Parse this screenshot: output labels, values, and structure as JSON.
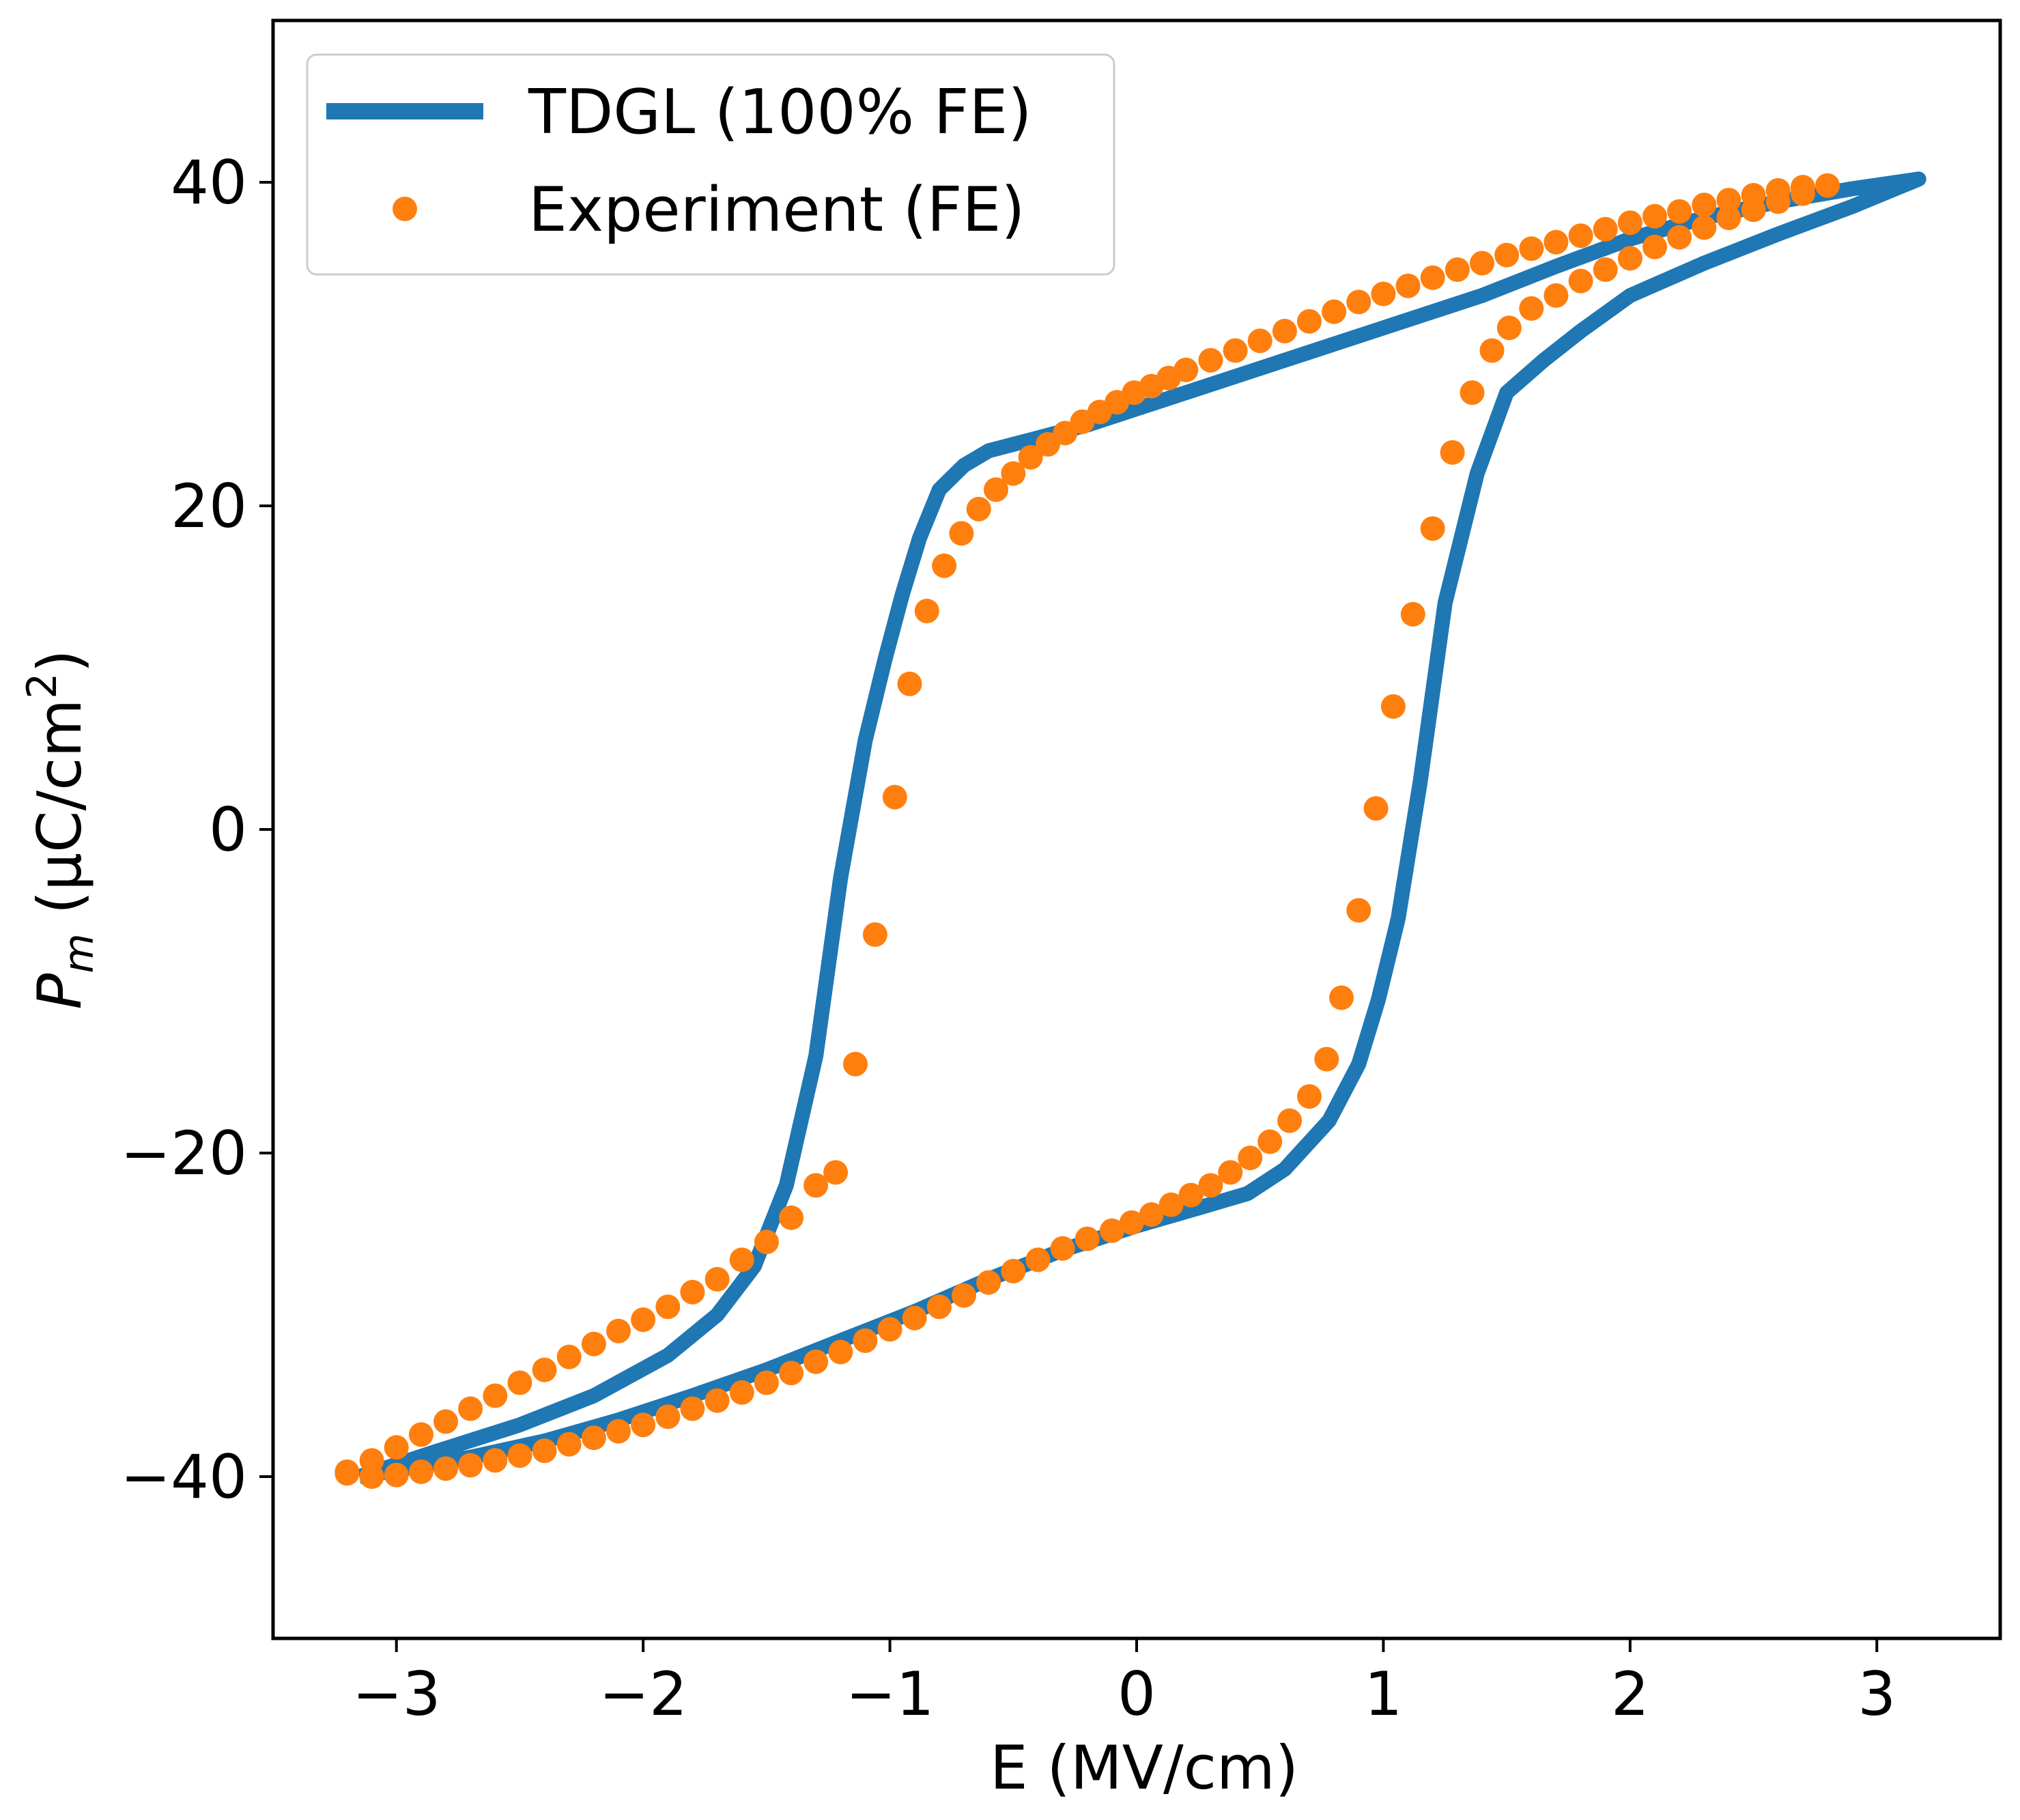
{
  "chart_data": {
    "type": "line",
    "title": "",
    "xlabel": "E (MV/cm)",
    "ylabel_main": "P",
    "ylabel_sub": "m",
    "ylabel_rest": " (μC/cm",
    "ylabel_sup": "2",
    "ylabel_close": ")",
    "xlim": [
      -3.5,
      3.5
    ],
    "ylim": [
      -50,
      50
    ],
    "xticks": [
      -3,
      -2,
      -1,
      0,
      1,
      2,
      3
    ],
    "xtick_labels": [
      "−3",
      "−2",
      "−1",
      "0",
      "1",
      "2",
      "3"
    ],
    "yticks": [
      -40,
      -20,
      0,
      20,
      40
    ],
    "ytick_labels": [
      "−40",
      "−20",
      "0",
      "20",
      "40"
    ],
    "legend_position": "top-left",
    "series": [
      {
        "name": "TDGL (100% FE)",
        "style": "line",
        "color": "#1f77b4",
        "x": [
          -3.15,
          -2.85,
          -2.5,
          -2.2,
          -1.9,
          -1.7,
          -1.55,
          -1.42,
          -1.3,
          -1.2,
          -1.1,
          -1.02,
          -0.95,
          -0.88,
          -0.8,
          -0.7,
          -0.6,
          -0.4,
          -0.2,
          0.0,
          0.3,
          0.6,
          1.0,
          1.4,
          1.7,
          2.0,
          2.3,
          2.6,
          2.9,
          3.17,
          2.9,
          2.6,
          2.3,
          2.0,
          1.8,
          1.65,
          1.5,
          1.38,
          1.25,
          1.15,
          1.06,
          0.98,
          0.9,
          0.78,
          0.6,
          0.45,
          0.25,
          0.0,
          -0.3,
          -0.6,
          -0.9,
          -1.2,
          -1.5,
          -1.8,
          -2.1,
          -2.4,
          -2.7,
          -3.0,
          -3.15
        ],
        "y": [
          -40.0,
          -38.5,
          -36.8,
          -35.0,
          -32.5,
          -30.0,
          -27.0,
          -22.0,
          -14.0,
          -3.0,
          5.5,
          10.5,
          14.5,
          18.0,
          21.0,
          22.5,
          23.4,
          24.2,
          25.0,
          26.0,
          27.5,
          29.0,
          31.0,
          33.0,
          34.8,
          36.5,
          37.8,
          38.8,
          39.6,
          40.2,
          38.5,
          36.8,
          35.0,
          33.0,
          30.8,
          29.0,
          27.0,
          22.0,
          14.0,
          3.0,
          -5.5,
          -10.5,
          -14.5,
          -18.0,
          -21.0,
          -22.5,
          -23.4,
          -24.5,
          -26.0,
          -27.8,
          -29.8,
          -31.6,
          -33.4,
          -35.0,
          -36.5,
          -37.8,
          -38.8,
          -39.6,
          -40.0
        ]
      },
      {
        "name": "Experiment (FE)",
        "style": "scatter",
        "color": "#ff7f0e",
        "x": [
          -3.2,
          -3.1,
          -3.0,
          -2.9,
          -2.8,
          -2.7,
          -2.6,
          -2.5,
          -2.4,
          -2.3,
          -2.2,
          -2.1,
          -2.0,
          -1.9,
          -1.8,
          -1.7,
          -1.6,
          -1.5,
          -1.4,
          -1.3,
          -1.22,
          -1.14,
          -1.06,
          -0.98,
          -0.92,
          -0.85,
          -0.78,
          -0.71,
          -0.64,
          -0.57,
          -0.5,
          -0.43,
          -0.36,
          -0.29,
          -0.22,
          -0.15,
          -0.08,
          -0.01,
          0.06,
          0.13,
          0.2,
          0.3,
          0.4,
          0.5,
          0.6,
          0.7,
          0.8,
          0.9,
          1.0,
          1.1,
          1.2,
          1.3,
          1.4,
          1.5,
          1.6,
          1.7,
          1.8,
          1.9,
          2.0,
          2.1,
          2.2,
          2.3,
          2.4,
          2.5,
          2.6,
          2.7,
          2.8,
          2.7,
          2.6,
          2.5,
          2.4,
          2.3,
          2.2,
          2.1,
          2.0,
          1.9,
          1.8,
          1.7,
          1.6,
          1.51,
          1.44,
          1.36,
          1.28,
          1.2,
          1.12,
          1.04,
          0.97,
          0.9,
          0.83,
          0.77,
          0.7,
          0.62,
          0.54,
          0.46,
          0.38,
          0.3,
          0.22,
          0.14,
          0.06,
          -0.02,
          -0.1,
          -0.2,
          -0.3,
          -0.4,
          -0.5,
          -0.6,
          -0.7,
          -0.8,
          -0.9,
          -1.0,
          -1.1,
          -1.2,
          -1.3,
          -1.4,
          -1.5,
          -1.6,
          -1.7,
          -1.8,
          -1.9,
          -2.0,
          -2.1,
          -2.2,
          -2.3,
          -2.4,
          -2.5,
          -2.6,
          -2.7,
          -2.8,
          -2.9,
          -3.0,
          -3.1,
          -3.2
        ],
        "y": [
          -39.7,
          -39.0,
          -38.2,
          -37.4,
          -36.6,
          -35.8,
          -35.0,
          -34.2,
          -33.4,
          -32.6,
          -31.8,
          -31.0,
          -30.3,
          -29.5,
          -28.6,
          -27.8,
          -26.6,
          -25.5,
          -24.0,
          -22.0,
          -21.2,
          -14.5,
          -6.5,
          2.0,
          9.0,
          13.5,
          16.3,
          18.3,
          19.8,
          21.0,
          22.0,
          23.0,
          23.8,
          24.5,
          25.2,
          25.8,
          26.4,
          27.0,
          27.4,
          27.9,
          28.4,
          29.0,
          29.6,
          30.2,
          30.8,
          31.4,
          32.0,
          32.6,
          33.1,
          33.6,
          34.1,
          34.6,
          35.0,
          35.5,
          35.9,
          36.3,
          36.7,
          37.1,
          37.5,
          37.9,
          38.2,
          38.6,
          38.9,
          39.2,
          39.5,
          39.7,
          39.8,
          39.3,
          38.8,
          38.3,
          37.8,
          37.2,
          36.6,
          36.0,
          35.3,
          34.6,
          33.9,
          33.0,
          32.2,
          31.0,
          29.6,
          27.0,
          23.3,
          18.6,
          13.3,
          7.6,
          1.3,
          -5.0,
          -10.4,
          -14.2,
          -16.5,
          -18.0,
          -19.3,
          -20.3,
          -21.2,
          -22.0,
          -22.6,
          -23.2,
          -23.8,
          -24.3,
          -24.8,
          -25.3,
          -25.9,
          -26.6,
          -27.3,
          -28.0,
          -28.8,
          -29.5,
          -30.2,
          -30.9,
          -31.6,
          -32.3,
          -32.9,
          -33.6,
          -34.2,
          -34.8,
          -35.3,
          -35.8,
          -36.3,
          -36.8,
          -37.2,
          -37.6,
          -38.0,
          -38.4,
          -38.7,
          -39.0,
          -39.3,
          -39.5,
          -39.7,
          -39.9,
          -40.0,
          -39.8
        ]
      }
    ]
  }
}
